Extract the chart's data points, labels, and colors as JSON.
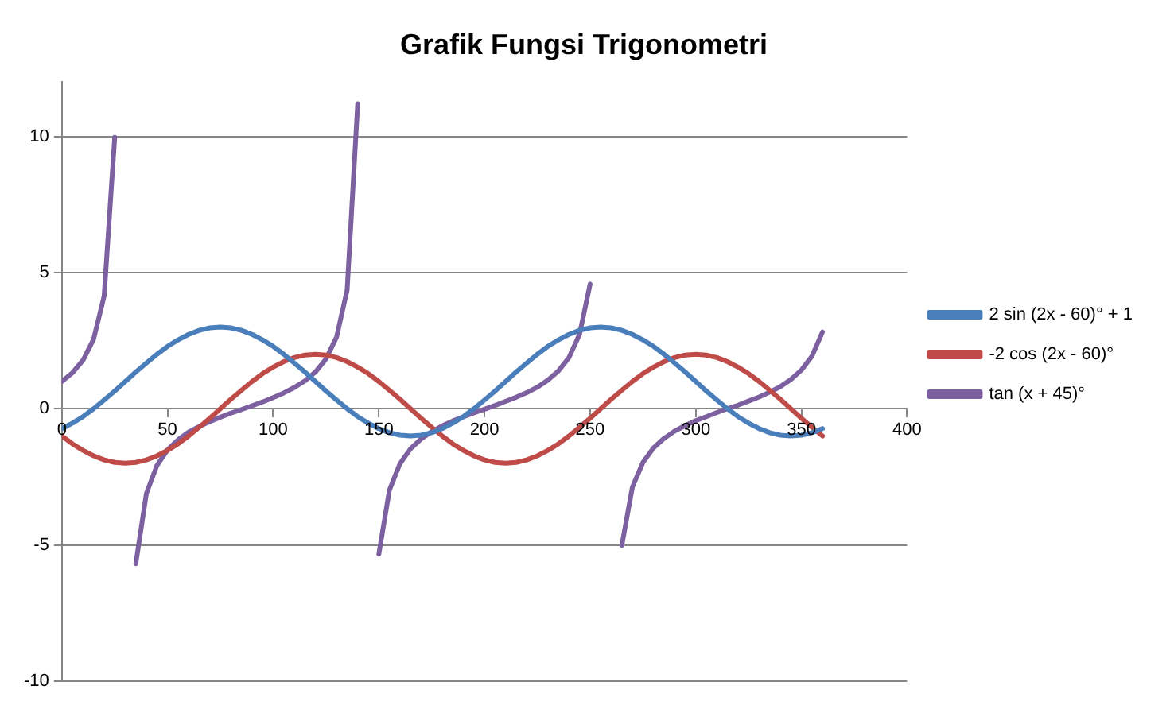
{
  "chart_data": {
    "type": "line",
    "title": "Grafik Fungsi Trigonometri",
    "x": [
      0,
      5,
      10,
      15,
      20,
      25,
      30,
      35,
      40,
      45,
      50,
      55,
      60,
      65,
      70,
      75,
      80,
      85,
      90,
      95,
      100,
      105,
      110,
      115,
      120,
      125,
      130,
      135,
      140,
      145,
      150,
      155,
      160,
      165,
      170,
      175,
      180,
      185,
      190,
      195,
      200,
      205,
      210,
      215,
      220,
      225,
      230,
      235,
      240,
      245,
      250,
      255,
      260,
      265,
      270,
      275,
      280,
      285,
      290,
      295,
      300,
      305,
      310,
      315,
      320,
      325,
      330,
      335,
      340,
      345,
      350,
      355,
      360
    ],
    "series": [
      {
        "name": "2 sin (2x - 60)° + 1",
        "color": "#4a7ebb",
        "values": [
          -0.73,
          -0.53,
          -0.29,
          0,
          0.32,
          0.65,
          1,
          1.35,
          1.68,
          2,
          2.29,
          2.53,
          2.73,
          2.88,
          2.97,
          3,
          2.97,
          2.88,
          2.73,
          2.53,
          2.29,
          2,
          1.68,
          1.35,
          1,
          0.65,
          0.32,
          0,
          -0.29,
          -0.53,
          -0.73,
          -0.88,
          -0.97,
          -1,
          -0.97,
          -0.88,
          -0.73,
          -0.53,
          -0.29,
          0,
          0.32,
          0.65,
          1,
          1.35,
          1.68,
          2,
          2.29,
          2.53,
          2.73,
          2.88,
          2.97,
          3,
          2.97,
          2.88,
          2.73,
          2.53,
          2.29,
          2,
          1.68,
          1.35,
          1,
          0.65,
          0.32,
          0,
          -0.29,
          -0.53,
          -0.73,
          -0.88,
          -0.97,
          -1,
          -0.97,
          -0.88,
          -0.73
        ]
      },
      {
        "name": "-2 cos (2x - 60)°",
        "color": "#be4b48",
        "values": [
          -1,
          -1.29,
          -1.53,
          -1.73,
          -1.88,
          -1.97,
          -2,
          -1.97,
          -1.88,
          -1.73,
          -1.53,
          -1.29,
          -1,
          -0.68,
          -0.35,
          0,
          0.35,
          0.68,
          1,
          1.29,
          1.53,
          1.73,
          1.88,
          1.97,
          2,
          1.97,
          1.88,
          1.73,
          1.53,
          1.29,
          1,
          0.68,
          0.35,
          0,
          -0.35,
          -0.68,
          -1,
          -1.29,
          -1.53,
          -1.73,
          -1.88,
          -1.97,
          -2,
          -1.97,
          -1.88,
          -1.73,
          -1.53,
          -1.29,
          -1,
          -0.68,
          -0.35,
          0,
          0.35,
          0.68,
          1,
          1.29,
          1.53,
          1.73,
          1.88,
          1.97,
          2,
          1.97,
          1.88,
          1.73,
          1.53,
          1.29,
          1,
          0.68,
          0.35,
          0,
          -0.35,
          -0.68,
          -1
        ]
      },
      {
        "name": "tan (x + 45)°",
        "color": "#7d60a0",
        "values": [
          1,
          1.32,
          1.78,
          2.55,
          4.14,
          9.97,
          null,
          -5.69,
          -3.11,
          -2.08,
          -1.51,
          -1.14,
          -0.86,
          -0.65,
          -0.47,
          -0.31,
          -0.16,
          -0.03,
          0.11,
          0.25,
          0.41,
          0.58,
          0.78,
          1.02,
          1.35,
          1.83,
          2.63,
          4.36,
          11.2,
          null,
          -5.34,
          -2.99,
          -2.02,
          -1.47,
          -1.11,
          -0.84,
          -0.63,
          -0.45,
          -0.3,
          -0.15,
          -0.02,
          0.12,
          0.27,
          0.42,
          0.59,
          0.79,
          1.05,
          1.39,
          1.88,
          2.73,
          4.58,
          null,
          null,
          -5.02,
          -2.88,
          -1.97,
          -1.44,
          -1.09,
          -0.82,
          -0.62,
          -0.44,
          -0.29,
          -0.14,
          0,
          0.13,
          0.28,
          0.43,
          0.61,
          0.81,
          1.07,
          1.42,
          1.93,
          2.82
        ]
      }
    ],
    "xlim": [
      0,
      400
    ],
    "xticks": [
      0,
      50,
      100,
      150,
      200,
      250,
      300,
      350,
      400
    ],
    "ylim": [
      -10,
      12
    ],
    "yticks": [
      -10,
      -5,
      0,
      5,
      10
    ],
    "grid": "y",
    "legend": "right",
    "marker": "none",
    "line_style": "solid"
  }
}
